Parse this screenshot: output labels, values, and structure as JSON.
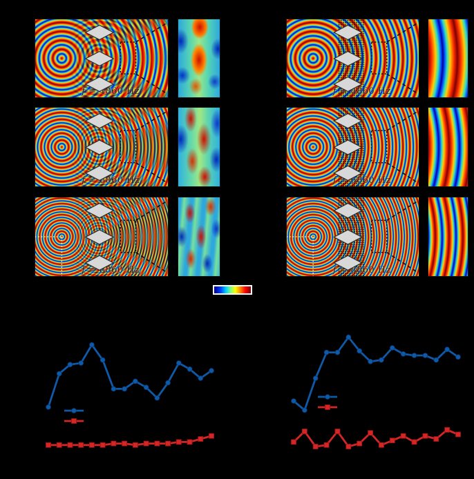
{
  "figure": {
    "background": "#000000",
    "description": "Acoustic wave-field simulations: uncloaked diamond scatterers (left column) vs cloaked with metamaterial lattice (right column) at three frequencies, each with a zoomed inset strip; jet colorbar; two line charts below (axis text not visible against black background)."
  },
  "palette": {
    "jet": [
      "#000090",
      "#0040ff",
      "#00d0ff",
      "#80ff80",
      "#ffff00",
      "#ff8000",
      "#ff0000",
      "#800000"
    ],
    "scatterer_fill": "#d8d8d8",
    "scatterer_stroke": "#2a2a2a",
    "series_blue": "#0e5aa8",
    "series_red": "#d42626",
    "crosshair": "#ffffff",
    "dashed_outline": "#0b0b0b"
  },
  "panels": {
    "frequencies_hz": [
      4860,
      6860,
      8860
    ],
    "left": [
      {
        "label": "f = 4860 Hz",
        "scatterers": 3,
        "crosshair": false
      },
      {
        "label": "f = 6860 Hz",
        "scatterers": 3,
        "crosshair": false
      },
      {
        "label": "f = 8860 Hz",
        "scatterers": 3,
        "crosshair": true
      }
    ],
    "right": [
      {
        "label": "f = 4860 Hz",
        "scatterers": 3,
        "crosshair": false
      },
      {
        "label": "f = 6860 Hz",
        "scatterers": 3,
        "crosshair": false
      },
      {
        "label": "f = 8860 Hz",
        "scatterers": 3,
        "crosshair": true
      }
    ]
  },
  "colorbar": {
    "orientation": "horizontal",
    "colors": [
      "#000090",
      "#0040ff",
      "#00d0ff",
      "#80ff80",
      "#ffff00",
      "#ff8000",
      "#ff0000",
      "#800000"
    ],
    "labels_visible": false
  },
  "chart_data": [
    {
      "type": "line",
      "title": "",
      "xlabel": "",
      "ylabel": "",
      "axis_labels_visible": false,
      "grid": false,
      "x": [
        1,
        2,
        3,
        4,
        5,
        6,
        7,
        8,
        9,
        10,
        11,
        12,
        13,
        14,
        15,
        16
      ],
      "series": [
        {
          "name": "series-blue",
          "marker": "circle",
          "color": "#0e5aa8",
          "values": [
            0.41,
            0.63,
            0.69,
            0.7,
            0.82,
            0.72,
            0.53,
            0.53,
            0.58,
            0.54,
            0.47,
            0.57,
            0.7,
            0.66,
            0.6,
            0.65
          ]
        },
        {
          "name": "series-red",
          "marker": "square",
          "color": "#d42626",
          "values": [
            0.16,
            0.16,
            0.16,
            0.16,
            0.16,
            0.16,
            0.17,
            0.17,
            0.16,
            0.17,
            0.17,
            0.17,
            0.18,
            0.18,
            0.2,
            0.22
          ]
        }
      ],
      "legend": {
        "position": "inside-left",
        "labels_visible": false,
        "entries": [
          "",
          ""
        ]
      },
      "ylim_normalized": [
        0,
        1
      ]
    },
    {
      "type": "line",
      "title": "",
      "xlabel": "",
      "ylabel": "",
      "axis_labels_visible": false,
      "grid": false,
      "x": [
        1,
        2,
        3,
        4,
        5,
        6,
        7,
        8,
        9,
        10,
        11,
        12,
        13,
        14,
        15,
        16
      ],
      "series": [
        {
          "name": "series-blue",
          "marker": "circle",
          "color": "#0e5aa8",
          "values": [
            0.45,
            0.39,
            0.6,
            0.77,
            0.77,
            0.87,
            0.78,
            0.71,
            0.72,
            0.8,
            0.76,
            0.75,
            0.75,
            0.72,
            0.79,
            0.74
          ]
        },
        {
          "name": "series-red",
          "marker": "square",
          "color": "#d42626",
          "values": [
            0.18,
            0.25,
            0.15,
            0.16,
            0.25,
            0.15,
            0.17,
            0.24,
            0.16,
            0.19,
            0.22,
            0.18,
            0.22,
            0.2,
            0.26,
            0.23
          ]
        }
      ],
      "legend": {
        "position": "inside-left",
        "labels_visible": false,
        "entries": [
          "",
          ""
        ]
      },
      "ylim_normalized": [
        0,
        1
      ]
    }
  ]
}
